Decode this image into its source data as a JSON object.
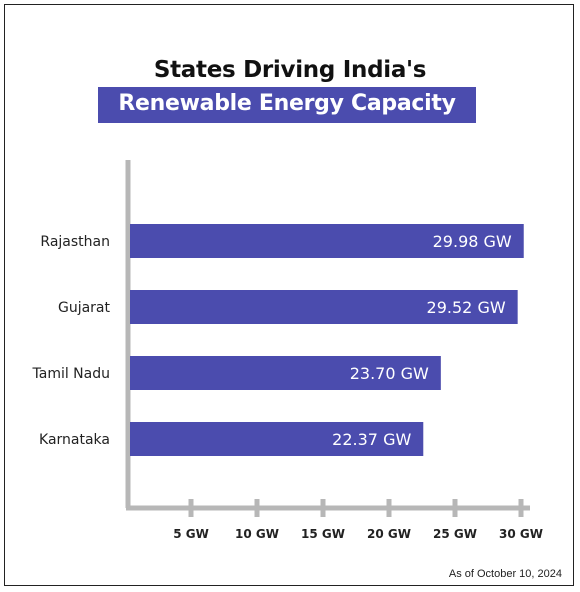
{
  "colors": {
    "bar": "#4b4cae",
    "title_band": "#4b4cae",
    "axis": "#b7b7b7"
  },
  "header": {
    "title_line1": "States Driving India's",
    "title_line2": "Renewable Energy Capacity"
  },
  "footnote": "As of October 10, 2024",
  "chart_data": {
    "type": "bar",
    "orientation": "horizontal",
    "title": "States Driving India's Renewable Energy Capacity",
    "categories": [
      "Rajasthan",
      "Gujarat",
      "Tamil Nadu",
      "Karnataka"
    ],
    "values": [
      29.98,
      29.52,
      23.7,
      22.37
    ],
    "value_labels": [
      "29.98 GW",
      "29.52 GW",
      "23.70 GW",
      "22.37 GW"
    ],
    "x_ticks": [
      5,
      10,
      15,
      20,
      25,
      30
    ],
    "x_tick_labels": [
      "5 GW",
      "10 GW",
      "15 GW",
      "20 GW",
      "25 GW",
      "30 GW"
    ],
    "xlim": [
      0,
      30
    ],
    "unit": "GW",
    "grid": false,
    "legend": "none"
  }
}
